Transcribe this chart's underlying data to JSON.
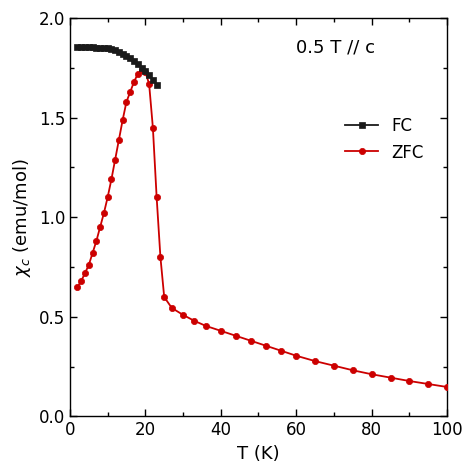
{
  "title_annotation": "0.5 T // c",
  "xlabel": "T (K)",
  "ylabel": "$\\chi_c$ (emu/mol)",
  "xlim": [
    0,
    100
  ],
  "ylim": [
    0.0,
    2.0
  ],
  "xticks": [
    0,
    20,
    40,
    60,
    80,
    100
  ],
  "yticks": [
    0.0,
    0.5,
    1.0,
    1.5,
    2.0
  ],
  "fc_color": "#1a1a1a",
  "zfc_color": "#cc0000",
  "fc_T": [
    2,
    3,
    4,
    5,
    6,
    7,
    8,
    9,
    10,
    11,
    12,
    13,
    14,
    15,
    16,
    17,
    18,
    19,
    20,
    21,
    22,
    23
  ],
  "fc_chi": [
    1.855,
    1.855,
    1.855,
    1.855,
    1.853,
    1.852,
    1.851,
    1.85,
    1.848,
    1.845,
    1.84,
    1.832,
    1.822,
    1.81,
    1.798,
    1.783,
    1.768,
    1.752,
    1.735,
    1.715,
    1.69,
    1.665
  ],
  "zfc_T": [
    2,
    3,
    4,
    5,
    6,
    7,
    8,
    9,
    10,
    11,
    12,
    13,
    14,
    15,
    16,
    17,
    18,
    19,
    20,
    21,
    22,
    23,
    24,
    25,
    27,
    30,
    33,
    36,
    40,
    44,
    48,
    52,
    56,
    60,
    65,
    70,
    75,
    80,
    85,
    90,
    95,
    100
  ],
  "zfc_chi": [
    0.65,
    0.68,
    0.72,
    0.76,
    0.82,
    0.88,
    0.95,
    1.02,
    1.1,
    1.19,
    1.29,
    1.39,
    1.49,
    1.58,
    1.63,
    1.68,
    1.72,
    1.74,
    1.73,
    1.67,
    1.45,
    1.1,
    0.8,
    0.6,
    0.545,
    0.51,
    0.48,
    0.455,
    0.43,
    0.405,
    0.38,
    0.355,
    0.33,
    0.305,
    0.278,
    0.255,
    0.232,
    0.212,
    0.195,
    0.178,
    0.163,
    0.148
  ],
  "figsize": [
    4.74,
    4.74
  ],
  "dpi": 100
}
